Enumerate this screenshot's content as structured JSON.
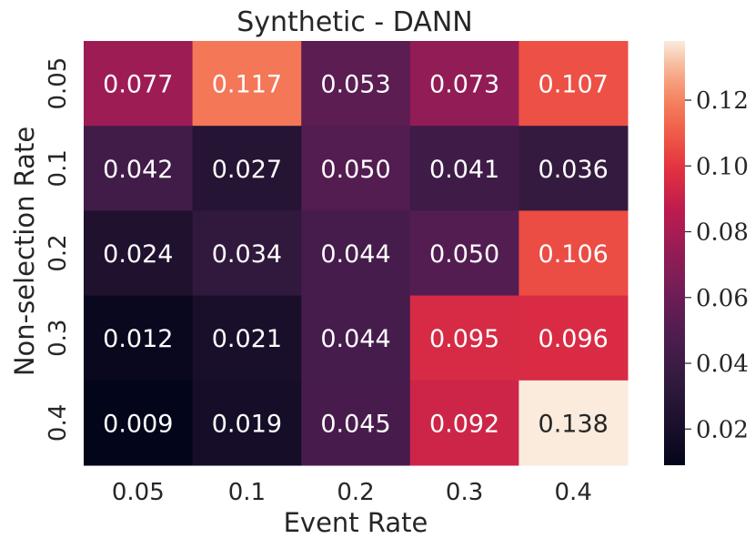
{
  "chart_data": {
    "type": "heatmap",
    "title": "Synthetic - DANN",
    "xlabel": "Event Rate",
    "ylabel": "Non-selection Rate",
    "x_categories": [
      "0.05",
      "0.1",
      "0.2",
      "0.3",
      "0.4"
    ],
    "y_categories": [
      "0.05",
      "0.1",
      "0.2",
      "0.3",
      "0.4"
    ],
    "values": [
      [
        0.077,
        0.117,
        0.053,
        0.073,
        0.107
      ],
      [
        0.042,
        0.027,
        0.05,
        0.041,
        0.036
      ],
      [
        0.024,
        0.034,
        0.044,
        0.05,
        0.106
      ],
      [
        0.012,
        0.021,
        0.044,
        0.095,
        0.096
      ],
      [
        0.009,
        0.019,
        0.045,
        0.092,
        0.138
      ]
    ],
    "cell_labels": [
      [
        "0.077",
        "0.117",
        "0.053",
        "0.073",
        "0.107"
      ],
      [
        "0.042",
        "0.027",
        "0.050",
        "0.041",
        "0.036"
      ],
      [
        "0.024",
        "0.034",
        "0.044",
        "0.050",
        "0.106"
      ],
      [
        "0.012",
        "0.021",
        "0.044",
        "0.095",
        "0.096"
      ],
      [
        "0.009",
        "0.019",
        "0.045",
        "0.092",
        "0.138"
      ]
    ],
    "colorbar": {
      "range": [
        0.009,
        0.138
      ],
      "ticks": [
        0.02,
        0.04,
        0.06,
        0.08,
        0.1,
        0.12
      ],
      "tick_labels": [
        "0.02",
        "0.04",
        "0.06",
        "0.08",
        "0.10",
        "0.12"
      ],
      "colormap": "rocket"
    }
  }
}
